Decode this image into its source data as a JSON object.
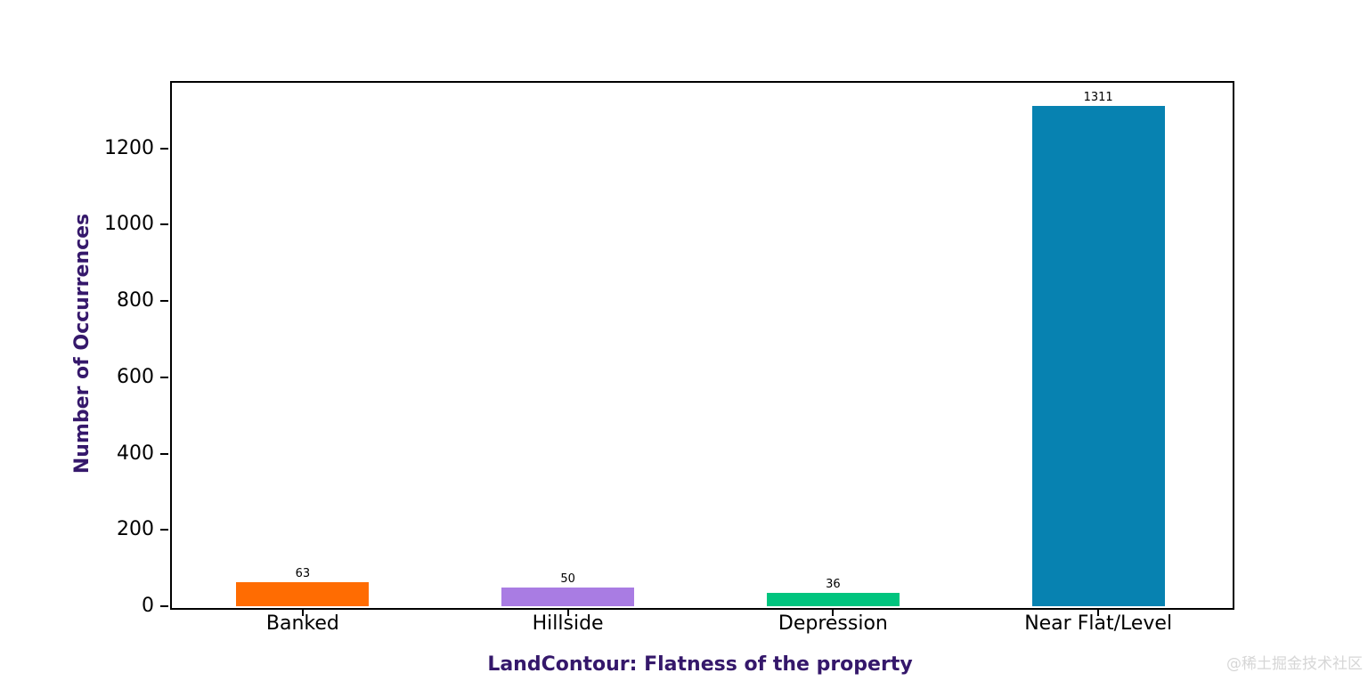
{
  "chart_data": {
    "type": "bar",
    "title": "",
    "xlabel": "LandContour: Flatness of the property",
    "ylabel": "Number of Occurrences",
    "categories": [
      "Banked",
      "Hillside",
      "Depression",
      "Near Flat/Level"
    ],
    "values": [
      63,
      50,
      36,
      1311
    ],
    "bar_value_labels": [
      "63",
      "50",
      "36",
      "1311"
    ],
    "bar_colors": [
      "#ff6c02",
      "#a97ce3",
      "#00c47e",
      "#0782b1"
    ],
    "yticks": [
      0,
      200,
      400,
      600,
      800,
      1000,
      1200
    ],
    "ylim": [
      0,
      1376.55
    ],
    "bar_width_fraction": 0.5,
    "grid": false,
    "legend_position": "none",
    "axis_label_color": "#35186b",
    "tick_label_color": "#000000",
    "background_color": "#ffffff"
  },
  "watermark": {
    "text": "@稀土掘金技术社区",
    "color": "#d6d6d6"
  }
}
